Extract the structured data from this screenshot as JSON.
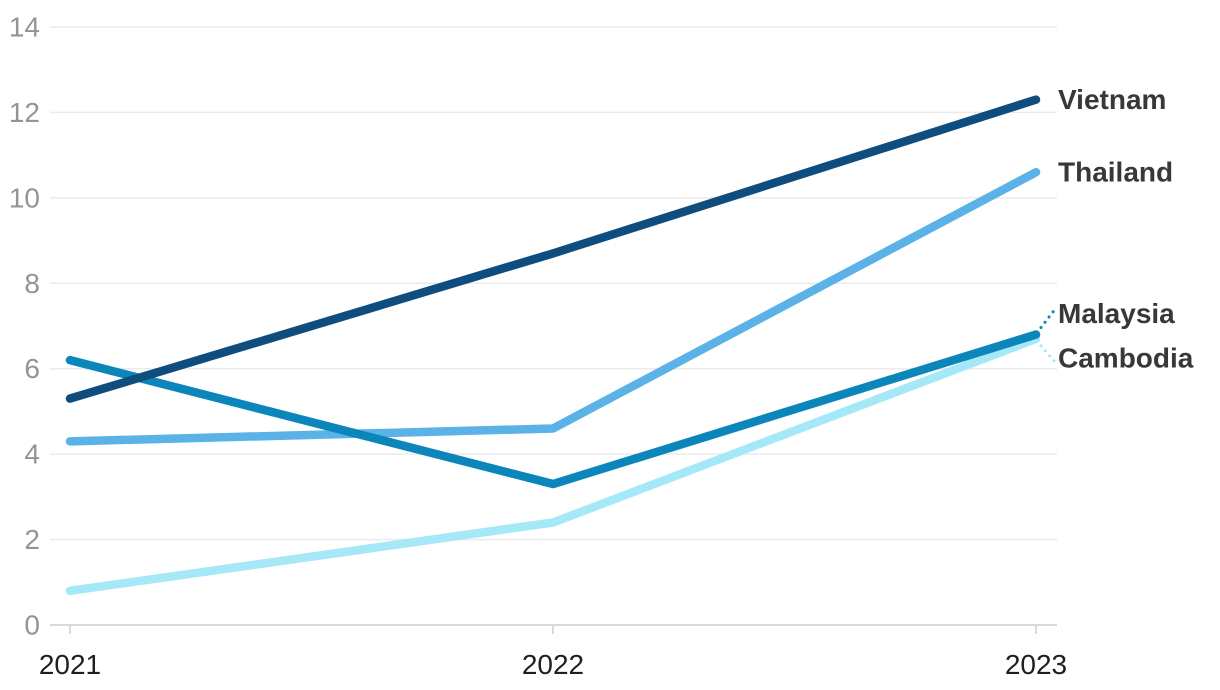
{
  "chart_data": {
    "type": "line",
    "x": [
      "2021",
      "2022",
      "2023"
    ],
    "series": [
      {
        "name": "Vietnam",
        "color": "#0f4d7e",
        "values": [
          5.3,
          8.7,
          12.3
        ],
        "z": 4,
        "label_dy": 0,
        "leader": false
      },
      {
        "name": "Thailand",
        "color": "#5bb2e6",
        "values": [
          4.3,
          4.6,
          10.6
        ],
        "z": 2,
        "label_dy": 0,
        "leader": false
      },
      {
        "name": "Malaysia",
        "color": "#0b86ba",
        "values": [
          6.2,
          3.3,
          6.8
        ],
        "z": 3,
        "label_dy": -21,
        "leader": true
      },
      {
        "name": "Cambodia",
        "color": "#a5e8f8",
        "values": [
          0.8,
          2.4,
          6.7
        ],
        "z": 1,
        "label_dy": 19,
        "leader": true
      }
    ],
    "title": "",
    "xlabel": "",
    "ylabel": "",
    "ylim": [
      0,
      14
    ],
    "yticks": [
      0,
      2,
      4,
      6,
      8,
      10,
      12,
      14
    ],
    "grid": true,
    "legend_position": "line-end-labels"
  },
  "colors": {
    "background": "#ffffff",
    "gridline": "#ebebeb",
    "axis_line": "#d9d9d9",
    "tick_mark": "#d9d9d9",
    "y_tick_label": "#949494",
    "x_tick_label": "#1f1f1f",
    "series_label": "#383838"
  }
}
